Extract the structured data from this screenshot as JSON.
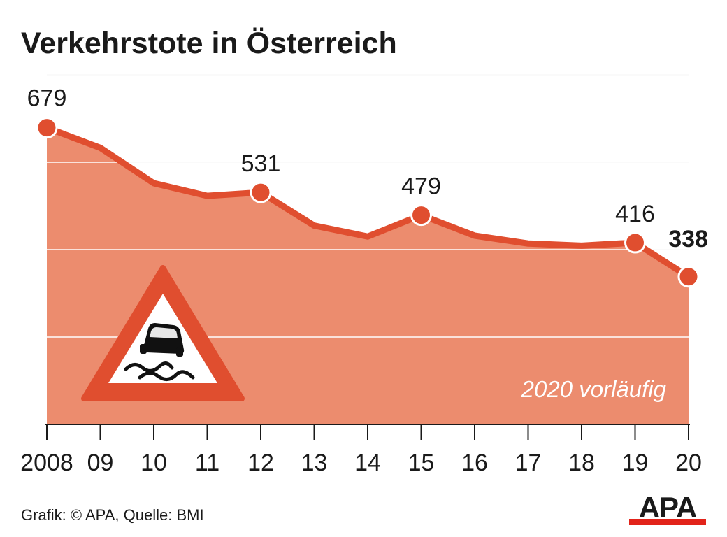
{
  "colors": {
    "area": "#ec8c6e",
    "line": "#e04e2f",
    "grid": "#ffffff",
    "text": "#1a1a1a",
    "logo_bar": "#e2231a"
  },
  "icon": "slippery-road-warning-sign-icon",
  "logo": "APA",
  "footer": "Grafik: © APA, Quelle: BMI",
  "chart_data": {
    "type": "area",
    "title": "Verkehrstote in Österreich",
    "xlabel": "",
    "ylabel": "",
    "categories": [
      "2008",
      "09",
      "10",
      "11",
      "12",
      "13",
      "14",
      "15",
      "16",
      "17",
      "18",
      "19",
      "20"
    ],
    "values": [
      679,
      633,
      552,
      523,
      531,
      455,
      430,
      479,
      432,
      414,
      409,
      416,
      338
    ],
    "labeled_points": [
      {
        "index": 0,
        "label": "679"
      },
      {
        "index": 4,
        "label": "531"
      },
      {
        "index": 7,
        "label": "479"
      },
      {
        "index": 11,
        "label": "416"
      },
      {
        "index": 12,
        "label": "338",
        "bold": true
      }
    ],
    "ylim": [
      0,
      800
    ],
    "grid": true,
    "annotation": "2020 vorläufig"
  }
}
